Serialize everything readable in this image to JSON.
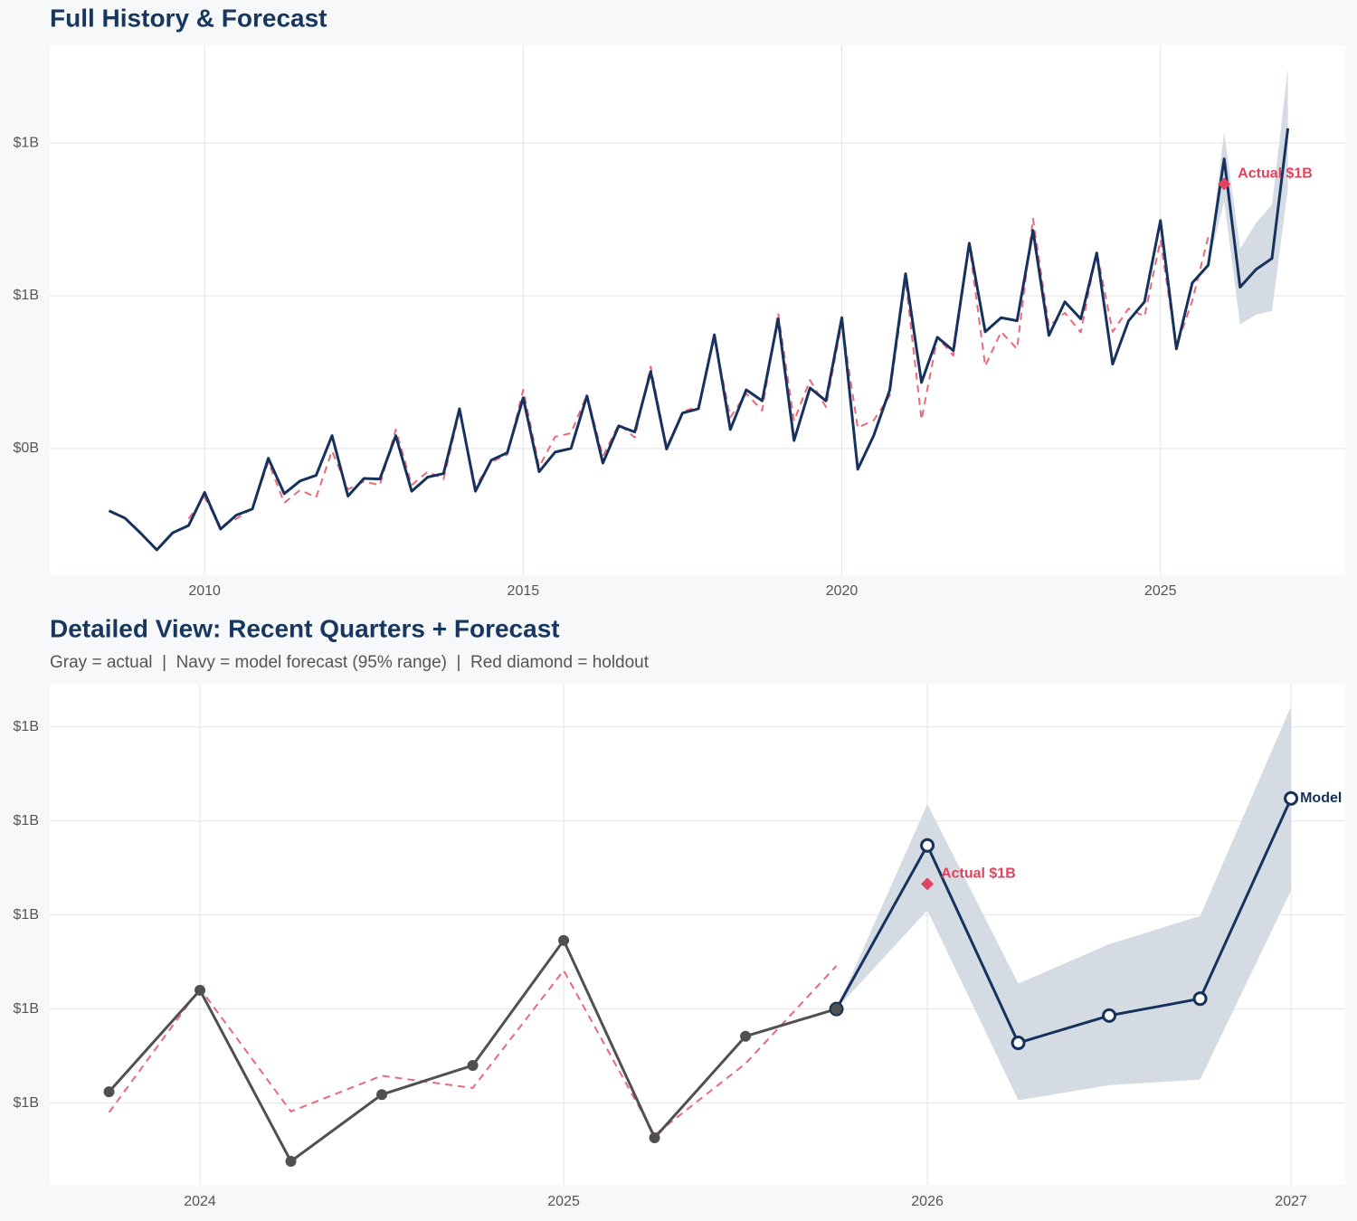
{
  "chart_data": [
    {
      "type": "line",
      "title": "Full History & Forecast",
      "x": [
        2008.5,
        2008.75,
        2009,
        2009.25,
        2009.5,
        2009.75,
        2010,
        2010.25,
        2010.5,
        2010.75,
        2011,
        2011.25,
        2011.5,
        2011.75,
        2012,
        2012.25,
        2012.5,
        2012.75,
        2013,
        2013.25,
        2013.5,
        2013.75,
        2014,
        2014.25,
        2014.5,
        2014.75,
        2015,
        2015.25,
        2015.5,
        2015.75,
        2016,
        2016.25,
        2016.5,
        2016.75,
        2017,
        2017.25,
        2017.5,
        2017.75,
        2018,
        2018.25,
        2018.5,
        2018.75,
        2019,
        2019.25,
        2019.5,
        2019.75,
        2020,
        2020.25,
        2020.5,
        2020.75,
        2021,
        2021.25,
        2021.5,
        2021.75,
        2022,
        2022.25,
        2022.5,
        2022.75,
        2023,
        2023.25,
        2023.5,
        2023.75,
        2024,
        2024.25,
        2024.5,
        2024.75,
        2025,
        2025.25,
        2025.5,
        2025.75,
        2026,
        2026.25,
        2026.5,
        2026.75,
        2027
      ],
      "band": {
        "color": "#d5dbe3",
        "lower": [
          null,
          null,
          null,
          null,
          null,
          null,
          null,
          null,
          null,
          null,
          null,
          null,
          null,
          null,
          null,
          null,
          null,
          null,
          null,
          null,
          null,
          null,
          null,
          null,
          null,
          null,
          null,
          null,
          null,
          null,
          null,
          null,
          null,
          null,
          null,
          null,
          null,
          null,
          null,
          null,
          null,
          null,
          null,
          null,
          null,
          null,
          null,
          null,
          null,
          null,
          null,
          null,
          null,
          null,
          null,
          null,
          null,
          null,
          null,
          null,
          null,
          null,
          null,
          null,
          null,
          null,
          null,
          null,
          null,
          0.8,
          0.905,
          0.703,
          0.719,
          0.725,
          0.926
        ],
        "upper": [
          null,
          null,
          null,
          null,
          null,
          null,
          null,
          null,
          null,
          null,
          null,
          null,
          null,
          null,
          null,
          null,
          null,
          null,
          null,
          null,
          null,
          null,
          null,
          null,
          null,
          null,
          null,
          null,
          null,
          null,
          null,
          null,
          null,
          null,
          null,
          null,
          null,
          null,
          null,
          null,
          null,
          null,
          null,
          null,
          null,
          null,
          null,
          null,
          null,
          null,
          null,
          null,
          null,
          null,
          null,
          null,
          null,
          null,
          null,
          null,
          null,
          null,
          null,
          null,
          null,
          null,
          null,
          null,
          null,
          0.8,
          1.018,
          0.827,
          0.869,
          0.899,
          1.122
        ]
      },
      "series": [
        {
          "color": "#e8697a",
          "dash": true,
          "values": [
            null,
            null,
            null,
            null,
            null,
            0.385,
            0.42,
            0.372,
            0.385,
            0.402,
            0.478,
            0.411,
            0.432,
            0.42,
            0.496,
            0.433,
            0.446,
            0.44,
            0.531,
            0.44,
            0.462,
            0.45,
            0.56,
            0.438,
            0.478,
            0.49,
            0.596,
            0.47,
            0.519,
            0.525,
            0.588,
            0.487,
            0.54,
            0.518,
            0.634,
            0.502,
            0.56,
            0.569,
            0.681,
            0.551,
            0.59,
            0.562,
            0.722,
            0.545,
            0.612,
            0.568,
            0.706,
            0.534,
            0.546,
            0.586,
            0.776,
            0.547,
            0.682,
            0.652,
            0.834,
            0.635,
            0.691,
            0.663,
            0.876,
            0.7,
            0.722,
            0.69,
            0.822,
            0.691,
            0.729,
            0.716,
            0.841,
            0.666,
            0.742,
            0.846,
            null,
            null,
            null,
            null,
            null
          ]
        },
        {
          "color": "#16325c",
          "values": [
            0.398,
            0.386,
            0.361,
            0.334,
            0.362,
            0.374,
            0.428,
            0.368,
            0.391,
            0.401,
            0.484,
            0.426,
            0.447,
            0.456,
            0.521,
            0.422,
            0.451,
            0.45,
            0.521,
            0.43,
            0.453,
            0.459,
            0.565,
            0.43,
            0.481,
            0.493,
            0.583,
            0.462,
            0.494,
            0.5,
            0.586,
            0.476,
            0.537,
            0.527,
            0.626,
            0.499,
            0.558,
            0.565,
            0.686,
            0.531,
            0.596,
            0.578,
            0.712,
            0.513,
            0.599,
            0.578,
            0.714,
            0.466,
            0.521,
            0.595,
            0.786,
            0.608,
            0.682,
            0.66,
            0.836,
            0.691,
            0.714,
            0.709,
            0.857,
            0.685,
            0.74,
            0.712,
            0.82,
            0.638,
            0.709,
            0.74,
            0.873,
            0.663,
            0.771,
            0.8,
            0.974,
            0.764,
            0.793,
            0.811,
            1.024
          ]
        }
      ],
      "annotations": [
        {
          "x": 2026,
          "y": 0.933,
          "label": "Actual $1B",
          "color": "#e0435f"
        }
      ],
      "xlim": [
        2007.57,
        2027.9
      ],
      "xticks": [
        2010,
        2015,
        2020,
        2025
      ],
      "ylim": [
        0.294,
        1.16
      ],
      "yticks": [
        {
          "value": 0.5,
          "label": "$0B"
        },
        {
          "value": 0.75,
          "label": "$1B"
        },
        {
          "value": 1.0,
          "label": "$1B"
        }
      ],
      "grid": true
    },
    {
      "type": "line",
      "title": "Detailed View: Recent Quarters + Forecast",
      "subtitle": "Gray = actual  |  Navy = model forecast (95% range)  |  Red diamond = holdout",
      "x": [
        2023.75,
        2024,
        2024.25,
        2024.5,
        2024.75,
        2025,
        2025.25,
        2025.5,
        2025.75,
        2026,
        2026.25,
        2026.5,
        2026.75,
        2027
      ],
      "band": {
        "color": "#d5dbe3",
        "lower": [
          null,
          null,
          null,
          null,
          null,
          null,
          null,
          null,
          0.8,
          0.905,
          0.703,
          0.719,
          0.725,
          0.926
        ],
        "upper": [
          null,
          null,
          null,
          null,
          null,
          null,
          null,
          null,
          0.8,
          1.018,
          0.827,
          0.869,
          0.899,
          1.122
        ]
      },
      "series": [
        {
          "color": "#e8697a",
          "dash": true,
          "values": [
            0.69,
            0.822,
            0.691,
            0.729,
            0.716,
            0.841,
            0.666,
            0.742,
            0.846,
            null,
            null,
            null,
            null,
            null
          ]
        },
        {
          "name": "Model",
          "color": "#16325c",
          "marker": "ring",
          "label_at_end": true,
          "values": [
            null,
            null,
            null,
            null,
            null,
            null,
            null,
            null,
            0.8,
            0.974,
            0.764,
            0.793,
            0.811,
            1.024
          ]
        },
        {
          "color": "#505050",
          "marker": "dot",
          "values": [
            0.712,
            0.82,
            0.638,
            0.709,
            0.74,
            0.873,
            0.663,
            0.771,
            0.8,
            null,
            null,
            null,
            null,
            null
          ]
        }
      ],
      "annotations": [
        {
          "x": 2026,
          "y": 0.933,
          "label": "Actual $1B",
          "color": "#e0435f"
        }
      ],
      "xlim": [
        2023.587,
        2027.149
      ],
      "xticks": [
        2024,
        2025,
        2026,
        2027
      ],
      "ylim": [
        0.613,
        1.145
      ],
      "yticks": [
        {
          "value": 0.7,
          "label": "$1B"
        },
        {
          "value": 0.8,
          "label": "$1B"
        },
        {
          "value": 0.9,
          "label": "$1B"
        },
        {
          "value": 1.0,
          "label": "$1B"
        },
        {
          "value": 1.1,
          "label": "$1B"
        }
      ],
      "grid": true
    }
  ]
}
